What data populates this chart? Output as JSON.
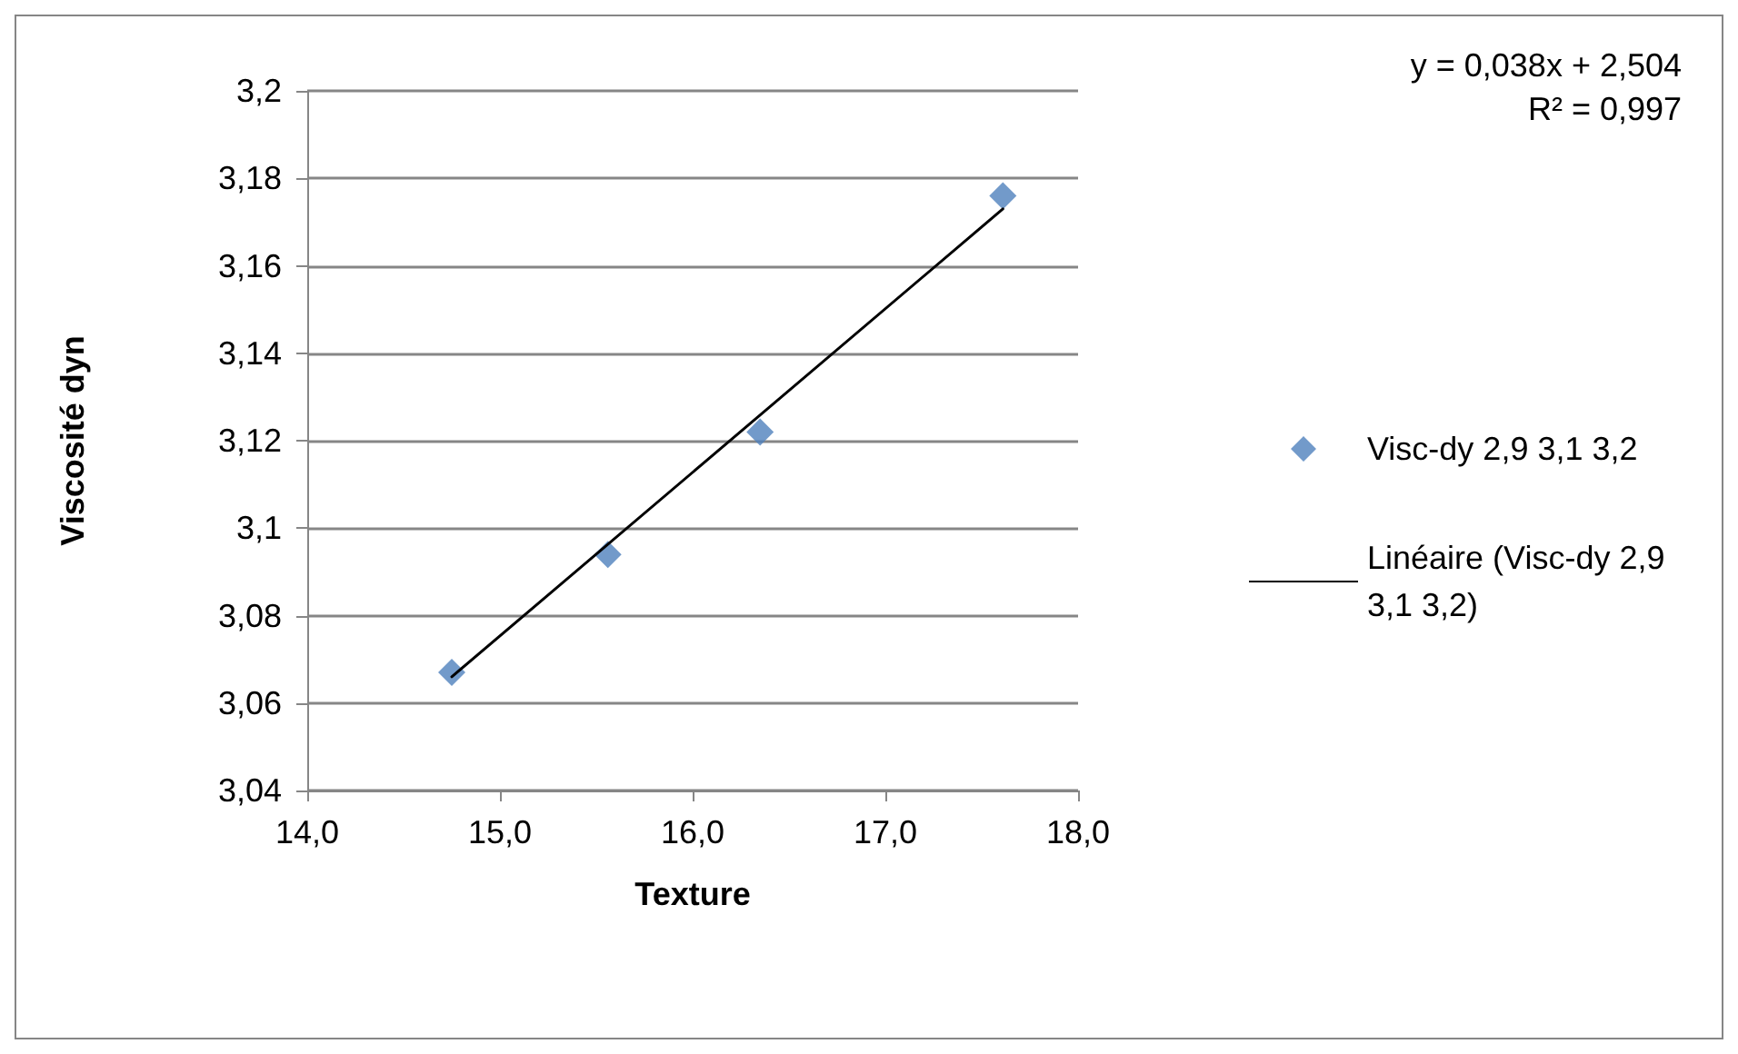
{
  "chart_data": {
    "type": "scatter",
    "xlabel": "Texture",
    "ylabel": "Viscosité dyn",
    "x": [
      14.75,
      15.56,
      16.35,
      17.61
    ],
    "series": [
      {
        "name": "Visc-dy 2,9 3,1 3,2",
        "color": "#4f81bd",
        "values": [
          3.067,
          3.094,
          3.122,
          3.176
        ]
      },
      {
        "name": "Linéaire (Visc-dy 2,9 3,1 3,2)",
        "type": "line",
        "color": "#000000",
        "marker": "none",
        "x": [
          14.75,
          17.61
        ],
        "values": [
          3.066,
          3.173
        ]
      }
    ],
    "xlim": [
      14,
      18
    ],
    "xticks": [
      {
        "value": 14,
        "label": "14,0"
      },
      {
        "value": 15,
        "label": "15,0"
      },
      {
        "value": 16,
        "label": "16,0"
      },
      {
        "value": 17,
        "label": "17,0"
      },
      {
        "value": 18,
        "label": "18,0"
      }
    ],
    "ylim": [
      3.04,
      3.2
    ],
    "yticks": [
      {
        "value": 3.04,
        "label": "3,04"
      },
      {
        "value": 3.06,
        "label": "3,06"
      },
      {
        "value": 3.08,
        "label": "3,08"
      },
      {
        "value": 3.1,
        "label": "3,1"
      },
      {
        "value": 3.12,
        "label": "3,12"
      },
      {
        "value": 3.14,
        "label": "3,14"
      },
      {
        "value": 3.16,
        "label": "3,16"
      },
      {
        "value": 3.18,
        "label": "3,18"
      },
      {
        "value": 3.2,
        "label": "3,2"
      }
    ],
    "annotations": [
      "y = 0,038x + 2,504",
      "R² = 0,997"
    ],
    "grid": "y",
    "legend": "right",
    "marker": "diamond"
  }
}
